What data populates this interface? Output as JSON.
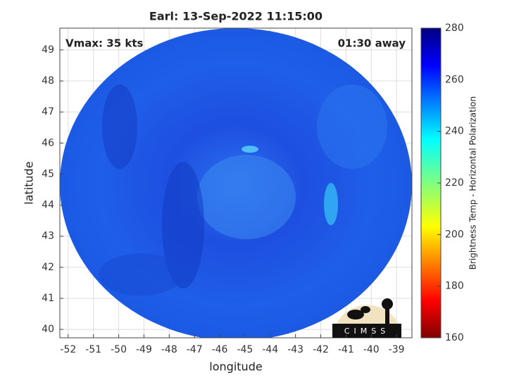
{
  "chart_data": {
    "type": "map",
    "title": "Earl: 13-Sep-2022 11:15:00",
    "annotations": [
      "Vmax: 35 kts",
      "01:30 away"
    ],
    "xlabel": "longitude",
    "ylabel": "latitude",
    "xlim": [
      -52.33,
      -38.39
    ],
    "ylim": [
      39.73,
      49.7
    ],
    "xticks": [
      -52,
      -51,
      -50,
      -49,
      -48,
      -47,
      -46,
      -45,
      -44,
      -43,
      -42,
      -41,
      -40,
      -39
    ],
    "yticks": [
      40,
      41,
      42,
      43,
      44,
      45,
      46,
      47,
      48,
      49
    ],
    "grid": true,
    "colorbar": {
      "label": "Brightness Temp - Horizontal Polarization",
      "lim": [
        160,
        280
      ],
      "ticks": [
        160,
        180,
        200,
        220,
        240,
        260,
        280
      ]
    },
    "logo": "CIMSS"
  }
}
